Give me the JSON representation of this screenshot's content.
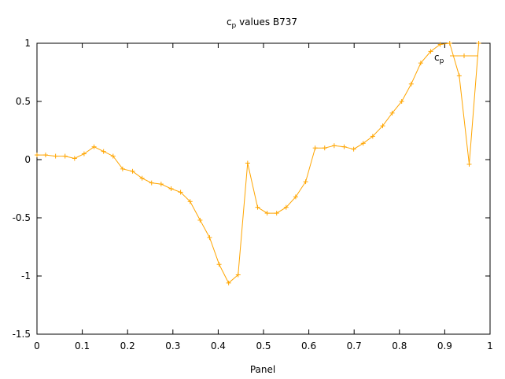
{
  "chart_data": {
    "type": "line",
    "title_main": "c",
    "title_sub": "p",
    "title_rest": " values B737",
    "xlabel": "Panel",
    "ylabel": "",
    "xlim": [
      0,
      1
    ],
    "ylim": [
      -1.5,
      1
    ],
    "x_ticks": [
      "0",
      "0.1",
      "0.2",
      "0.3",
      "0.4",
      "0.5",
      "0.6",
      "0.7",
      "0.8",
      "0.9",
      "1"
    ],
    "y_ticks": [
      "1",
      "0.5",
      "0",
      "-0.5",
      "-1",
      "-1.5"
    ],
    "grid": false,
    "legend_position": "top-right",
    "series": [
      {
        "name_main": "c",
        "name_sub": "p",
        "color": "#FFA500",
        "x": [
          0.0,
          0.019,
          0.041,
          0.062,
          0.083,
          0.104,
          0.126,
          0.147,
          0.168,
          0.189,
          0.211,
          0.232,
          0.253,
          0.274,
          0.296,
          0.317,
          0.338,
          0.36,
          0.381,
          0.402,
          0.423,
          0.444,
          0.465,
          0.487,
          0.508,
          0.529,
          0.55,
          0.571,
          0.593,
          0.614,
          0.635,
          0.656,
          0.678,
          0.699,
          0.72,
          0.741,
          0.763,
          0.784,
          0.805,
          0.826,
          0.847,
          0.869,
          0.89,
          0.911,
          0.932,
          0.954,
          0.975
        ],
        "y": [
          0.04,
          0.04,
          0.03,
          0.03,
          0.01,
          0.05,
          0.11,
          0.07,
          0.03,
          -0.08,
          -0.1,
          -0.16,
          -0.2,
          -0.21,
          -0.25,
          -0.28,
          -0.36,
          -0.52,
          -0.67,
          -0.9,
          -1.06,
          -0.99,
          -0.03,
          -0.41,
          -0.46,
          -0.46,
          -0.41,
          -0.32,
          -0.19,
          0.1,
          0.1,
          0.12,
          0.11,
          0.09,
          0.14,
          0.2,
          0.29,
          0.4,
          0.5,
          0.65,
          0.83,
          0.93,
          0.99,
          1.0,
          0.72,
          -0.04,
          1.0
        ]
      }
    ]
  }
}
